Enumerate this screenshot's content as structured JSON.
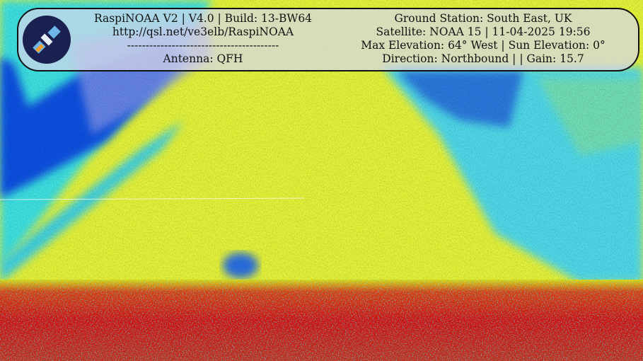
{
  "header": {
    "left": [
      "RaspiNOAA V2 | V4.0 | Build: 13-BW64",
      "http://qsl.net/ve3elb/RaspiNOAA",
      "-----------------------------------------",
      "Antenna: QFH"
    ],
    "right": [
      "Ground Station: South East, UK",
      "Satellite: NOAA 15 | 11-04-2025 19:56",
      "Max Elevation: 64° West | Sun Elevation: 0°",
      "Direction: Northbound | | Gain: 15.7"
    ]
  }
}
